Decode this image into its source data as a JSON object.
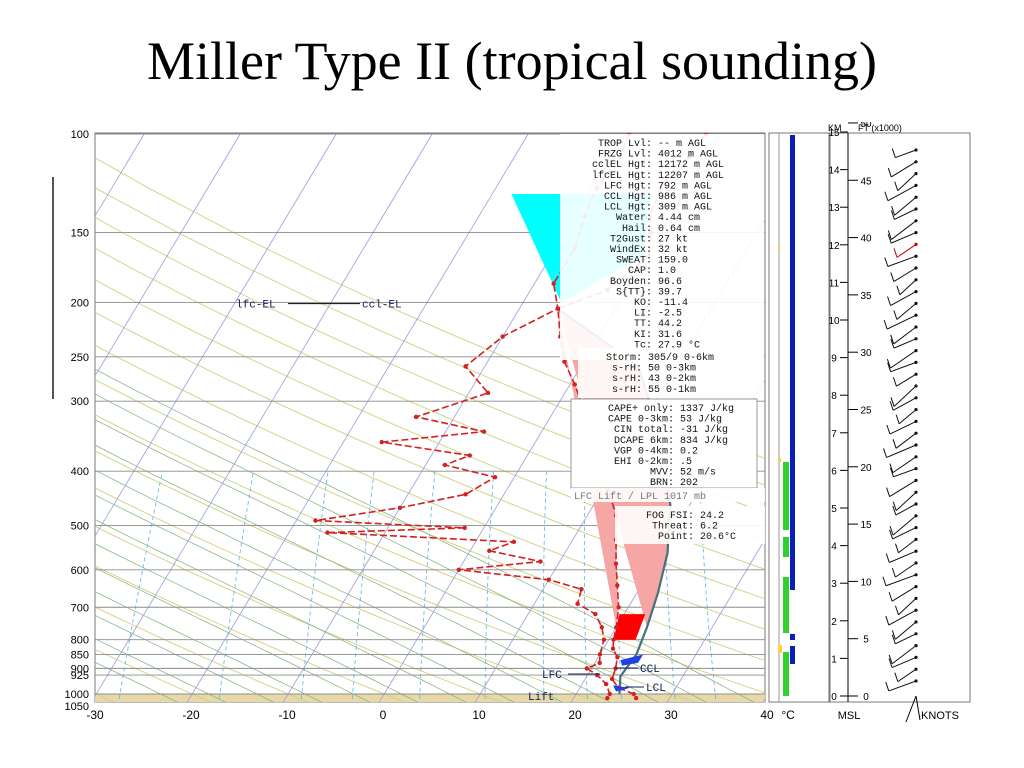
{
  "slide": {
    "title": "Miller Type II (tropical sounding)"
  },
  "chart_data": {
    "type": "skew-t",
    "pressure_axis": {
      "ticks": [
        "100",
        "150",
        "200",
        "250",
        "300",
        "400",
        "500",
        "600",
        "700",
        "800",
        "850",
        "900",
        "925",
        "1000",
        "1050"
      ],
      "values": [
        100,
        150,
        200,
        250,
        300,
        400,
        500,
        600,
        700,
        800,
        850,
        900,
        925,
        1000,
        1050
      ]
    },
    "temperature_axis": {
      "ticks": [
        "-30",
        "-20",
        "-10",
        "0",
        "10",
        "20",
        "30",
        "40"
      ],
      "values": [
        -30,
        -20,
        -10,
        0,
        10,
        20,
        30,
        40
      ],
      "unit": "°C"
    },
    "height_axis_km": {
      "label": "KM",
      "ticks": [
        "0",
        "1",
        "2",
        "3",
        "4",
        "5",
        "6",
        "7",
        "8",
        "9",
        "10",
        "11",
        "12",
        "13",
        "14",
        "15",
        "16"
      ]
    },
    "height_axis_ft": {
      "label": "FT (x1000)",
      "ticks": [
        "0",
        "5",
        "10",
        "15",
        "20",
        "25",
        "30",
        "35",
        "40",
        "45",
        "50"
      ]
    },
    "bottom_labels": {
      "msl": "MSL",
      "knots": "KNOTS"
    },
    "level_labels": {
      "lfc_el": "lfc-EL",
      "ccl_el": "ccl-EL",
      "ccl": "CCL",
      "lfc": "LFC",
      "lcl": "LCL",
      "lift": "Lift"
    },
    "temperature_profile": {
      "color": "#d42020",
      "points": [
        {
          "t": -1.5,
          "p": 100
        },
        {
          "t": -1.8,
          "p": 110
        },
        {
          "t": -2.8,
          "p": 125
        },
        {
          "t": -2.2,
          "p": 140
        },
        {
          "t": -1.0,
          "p": 150
        },
        {
          "t": 0.2,
          "p": 165
        },
        {
          "t": -2.0,
          "p": 190
        },
        {
          "t": -6.0,
          "p": 205
        },
        {
          "t": -4.0,
          "p": 230
        },
        {
          "t": -2.0,
          "p": 255
        },
        {
          "t": 0.5,
          "p": 280
        },
        {
          "t": 3.0,
          "p": 310
        },
        {
          "t": 5.5,
          "p": 345
        },
        {
          "t": 8.0,
          "p": 385
        },
        {
          "t": 10.5,
          "p": 430
        },
        {
          "t": 13.0,
          "p": 480
        },
        {
          "t": 14.5,
          "p": 530
        },
        {
          "t": 16.0,
          "p": 585
        },
        {
          "t": 17.5,
          "p": 640
        },
        {
          "t": 19.0,
          "p": 700
        },
        {
          "t": 20.0,
          "p": 760
        },
        {
          "t": 20.5,
          "p": 800
        },
        {
          "t": 21.0,
          "p": 830
        },
        {
          "t": 22.0,
          "p": 860
        },
        {
          "t": 22.5,
          "p": 900
        },
        {
          "t": 22.8,
          "p": 940
        },
        {
          "t": 24.0,
          "p": 975
        },
        {
          "t": 26.0,
          "p": 1000
        },
        {
          "t": 26.5,
          "p": 1017
        }
      ]
    },
    "dewpoint_profile": {
      "color": "#d42020",
      "points": [
        {
          "t": -9.5,
          "p": 100
        },
        {
          "t": -9.0,
          "p": 110
        },
        {
          "t": -9.5,
          "p": 125
        },
        {
          "t": -9.0,
          "p": 140
        },
        {
          "t": -8.0,
          "p": 160
        },
        {
          "t": -8.0,
          "p": 185
        },
        {
          "t": -6.0,
          "p": 205
        },
        {
          "t": -10.0,
          "p": 230
        },
        {
          "t": -12.0,
          "p": 260
        },
        {
          "t": -8.0,
          "p": 290
        },
        {
          "t": -14.0,
          "p": 320
        },
        {
          "t": -6.0,
          "p": 340
        },
        {
          "t": -16.0,
          "p": 355
        },
        {
          "t": -6.0,
          "p": 375
        },
        {
          "t": -8.0,
          "p": 390
        },
        {
          "t": -2.0,
          "p": 410
        },
        {
          "t": -4.0,
          "p": 440
        },
        {
          "t": -10.0,
          "p": 465
        },
        {
          "t": -18.0,
          "p": 490
        },
        {
          "t": -2.0,
          "p": 505
        },
        {
          "t": -16.0,
          "p": 515
        },
        {
          "t": 4.0,
          "p": 535
        },
        {
          "t": 2.0,
          "p": 555
        },
        {
          "t": 8.0,
          "p": 580
        },
        {
          "t": 0.0,
          "p": 600
        },
        {
          "t": 10.0,
          "p": 625
        },
        {
          "t": 14.0,
          "p": 650
        },
        {
          "t": 14.5,
          "p": 690
        },
        {
          "t": 17.0,
          "p": 720
        },
        {
          "t": 18.5,
          "p": 760
        },
        {
          "t": 19.5,
          "p": 800
        },
        {
          "t": 20.0,
          "p": 850
        },
        {
          "t": 20.5,
          "p": 880
        },
        {
          "t": 19.5,
          "p": 900
        },
        {
          "t": 21.0,
          "p": 925
        },
        {
          "t": 22.5,
          "p": 960
        },
        {
          "t": 23.5,
          "p": 1000
        },
        {
          "t": 23.5,
          "p": 1017
        }
      ]
    },
    "parcel_path": {
      "color": "#4a6e7a",
      "points": [
        {
          "t": 24.5,
          "p": 1000
        },
        {
          "t": 23.5,
          "p": 930
        },
        {
          "t": 23.8,
          "p": 850
        },
        {
          "t": 23.2,
          "p": 760
        },
        {
          "t": 22.2,
          "p": 660
        },
        {
          "t": 20.7,
          "p": 560
        },
        {
          "t": 18.0,
          "p": 460
        },
        {
          "t": 13.5,
          "p": 360
        },
        {
          "t": 6.0,
          "p": 260
        },
        {
          "t": -6.0,
          "p": 205
        }
      ]
    },
    "cin_region": {
      "color": "#ff0000",
      "points": [
        {
          "t": 19.5,
          "p": 720
        },
        {
          "t": 22.2,
          "p": 720
        },
        {
          "t": 22.8,
          "p": 800
        },
        {
          "t": 20.5,
          "p": 800
        }
      ]
    },
    "cloud_polygon": {
      "color": "#00ffff",
      "points": [
        {
          "t": -18.0,
          "p": 128
        },
        {
          "t": -3.5,
          "p": 128
        },
        {
          "t": -1.5,
          "p": 150
        },
        {
          "t": -0.5,
          "p": 165
        },
        {
          "t": -6.0,
          "p": 200
        }
      ]
    },
    "stats_block_1": [
      {
        "label": "TROP Lvl:",
        "value": "-- m AGL"
      },
      {
        "label": "FRZG Lvl:",
        "value": "4012 m AGL"
      },
      {
        "label": "cclEL Hgt:",
        "value": "12172 m AGL"
      },
      {
        "label": "lfcEL Hgt:",
        "value": "12207 m AGL"
      },
      {
        "label": "LFC Hgt:",
        "value": "792 m AGL"
      },
      {
        "label": "CCL Hgt:",
        "value": "986 m AGL"
      },
      {
        "label": "LCL Hgt:",
        "value": "309 m AGL"
      },
      {
        "label": "Water:",
        "value": "4.44 cm"
      },
      {
        "label": "Hail:",
        "value": "0.64 cm"
      },
      {
        "label": "T2Gust:",
        "value": "27 kt"
      },
      {
        "label": "WindEx:",
        "value": "32 kt"
      },
      {
        "label": "SWEAT:",
        "value": "159.0"
      },
      {
        "label": "CAP:",
        "value": "1.0"
      },
      {
        "label": "Boyden:",
        "value": "96.6"
      },
      {
        "label": "S{TT}:",
        "value": "39.7"
      },
      {
        "label": "KO:",
        "value": "-11.4"
      },
      {
        "label": "LI:",
        "value": "-2.5"
      },
      {
        "label": "TT:",
        "value": "44.2"
      },
      {
        "label": "KI:",
        "value": "31.6"
      },
      {
        "label": "Tc:",
        "value": "27.9 °C"
      }
    ],
    "stats_block_2": [
      {
        "label": "Storm:",
        "value": "305/9 0-6km"
      },
      {
        "label": "s-rH:",
        "value": "50 0-3km"
      },
      {
        "label": "s-rH:",
        "value": "43 0-2km"
      },
      {
        "label": "s-rH:",
        "value": "55 0-1km"
      }
    ],
    "stats_block_3": [
      {
        "label": "CAPE+ only:",
        "value": "1337 J/kg"
      },
      {
        "label": "CAPE 0-3km:",
        "value": "53 J/kg"
      },
      {
        "label": "CIN total:",
        "value": "-31 J/kg"
      },
      {
        "label": "DCAPE 6km:",
        "value": "834 J/kg"
      },
      {
        "label": "VGP 0-4km:",
        "value": "0.2"
      },
      {
        "label": "EHI 0-2km:",
        "value": ".5"
      },
      {
        "label": "MVV:",
        "value": "52 m/s"
      },
      {
        "label": "BRN:",
        "value": "202"
      }
    ],
    "lift_caption": "LFC Lift / LPL 1017 mb",
    "stats_block_4": [
      {
        "label": "FOG FSI:",
        "value": "24.2"
      },
      {
        "label": "Threat:",
        "value": "6.2"
      },
      {
        "label": "Point:",
        "value": "20.6°C"
      }
    ],
    "colors": {
      "profile": "#d42020",
      "parcel": "#4a6e7a",
      "cape_fill": "#f7a6a6",
      "cin_fill": "#ff0000",
      "cloud_fill": "#00ffff",
      "isotherm": "#9b9bd8",
      "dry_adiabat": "#d0d080",
      "moist_adiabat": "#88b888",
      "mixing_ratio": "#5ab5e8",
      "bar_blue": "#0a1fb8",
      "bar_green": "#2fd12f",
      "bar_yellow": "#ffd23c",
      "ground": "#e8d8a8"
    }
  }
}
